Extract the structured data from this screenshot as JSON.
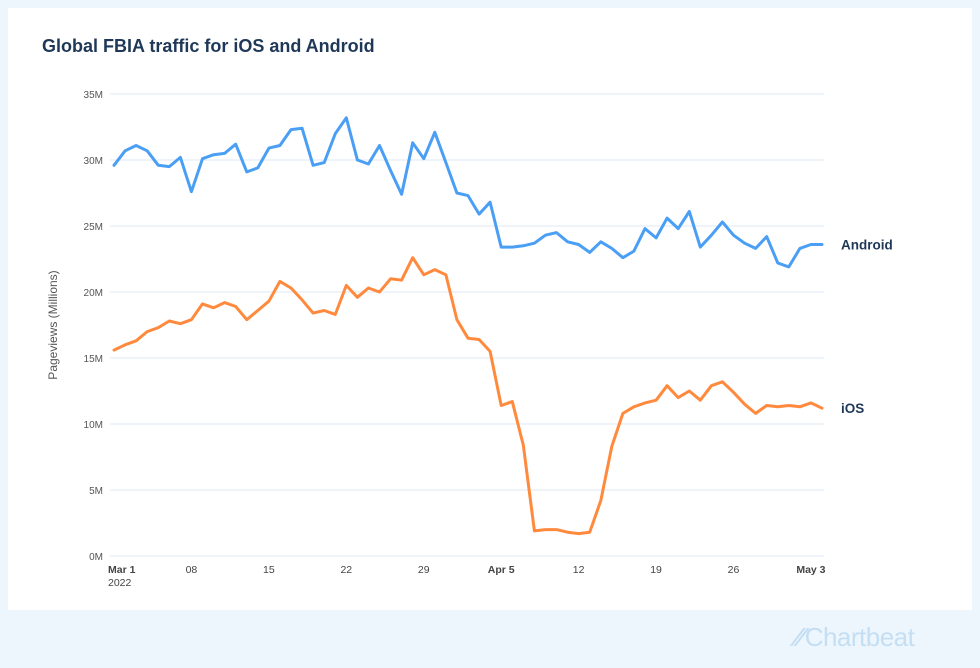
{
  "chart_data": {
    "type": "line",
    "title": "Global FBIA traffic for iOS and Android",
    "xlabel": "",
    "ylabel": "Pageviews (Millions)",
    "ylim": [
      0,
      35
    ],
    "yticks": [
      0,
      5,
      10,
      15,
      20,
      25,
      30,
      35
    ],
    "ytick_labels": [
      "0M",
      "5M",
      "10M",
      "15M",
      "20M",
      "25M",
      "30M",
      "35M"
    ],
    "x_start": "2022-03-01",
    "x_unit": "day",
    "xticks": [
      {
        "day": 0,
        "label": "Mar 1",
        "sub": "2022",
        "bold": true
      },
      {
        "day": 7,
        "label": "08"
      },
      {
        "day": 14,
        "label": "15"
      },
      {
        "day": 21,
        "label": "22"
      },
      {
        "day": 28,
        "label": "29"
      },
      {
        "day": 35,
        "label": "Apr 5",
        "bold": true
      },
      {
        "day": 42,
        "label": "12"
      },
      {
        "day": 49,
        "label": "19"
      },
      {
        "day": 56,
        "label": "26"
      },
      {
        "day": 63,
        "label": "May 3",
        "bold": true
      }
    ],
    "grid": true,
    "series": [
      {
        "name": "Android",
        "color": "#4a9ff5",
        "values": [
          29.6,
          30.7,
          31.1,
          30.7,
          29.6,
          29.5,
          30.2,
          27.6,
          30.1,
          30.4,
          30.5,
          31.2,
          29.1,
          29.4,
          30.9,
          31.1,
          32.3,
          32.4,
          29.6,
          29.8,
          32.0,
          33.2,
          30.0,
          29.7,
          31.1,
          29.2,
          27.4,
          31.3,
          30.1,
          32.1,
          29.8,
          27.5,
          27.3,
          25.9,
          26.8,
          23.4,
          23.4,
          23.5,
          23.7,
          24.3,
          24.5,
          23.8,
          23.6,
          23.0,
          23.8,
          23.3,
          22.6,
          23.1,
          24.8,
          24.1,
          25.6,
          24.8,
          26.1,
          23.4,
          24.3,
          25.3,
          24.3,
          23.7,
          23.3,
          24.2,
          22.2,
          21.9,
          23.3,
          23.6,
          23.6
        ]
      },
      {
        "name": "iOS",
        "color": "#ff8a3d",
        "values": [
          15.6,
          16.0,
          16.3,
          17.0,
          17.3,
          17.8,
          17.6,
          17.9,
          19.1,
          18.8,
          19.2,
          18.9,
          17.9,
          18.6,
          19.3,
          20.8,
          20.3,
          19.4,
          18.4,
          18.6,
          18.3,
          20.5,
          19.6,
          20.3,
          20.0,
          21.0,
          20.9,
          22.6,
          21.3,
          21.7,
          21.3,
          17.9,
          16.5,
          16.4,
          15.5,
          11.4,
          11.7,
          8.4,
          1.9,
          2.0,
          2.0,
          1.8,
          1.7,
          1.8,
          4.2,
          8.3,
          10.8,
          11.3,
          11.6,
          11.8,
          12.9,
          12.0,
          12.5,
          11.8,
          12.9,
          13.2,
          12.4,
          11.5,
          10.8,
          11.4,
          11.3,
          11.4,
          11.3,
          11.6,
          11.2
        ]
      }
    ],
    "legend": "inline-right"
  },
  "branding": {
    "logo_text": "Chartbeat"
  }
}
